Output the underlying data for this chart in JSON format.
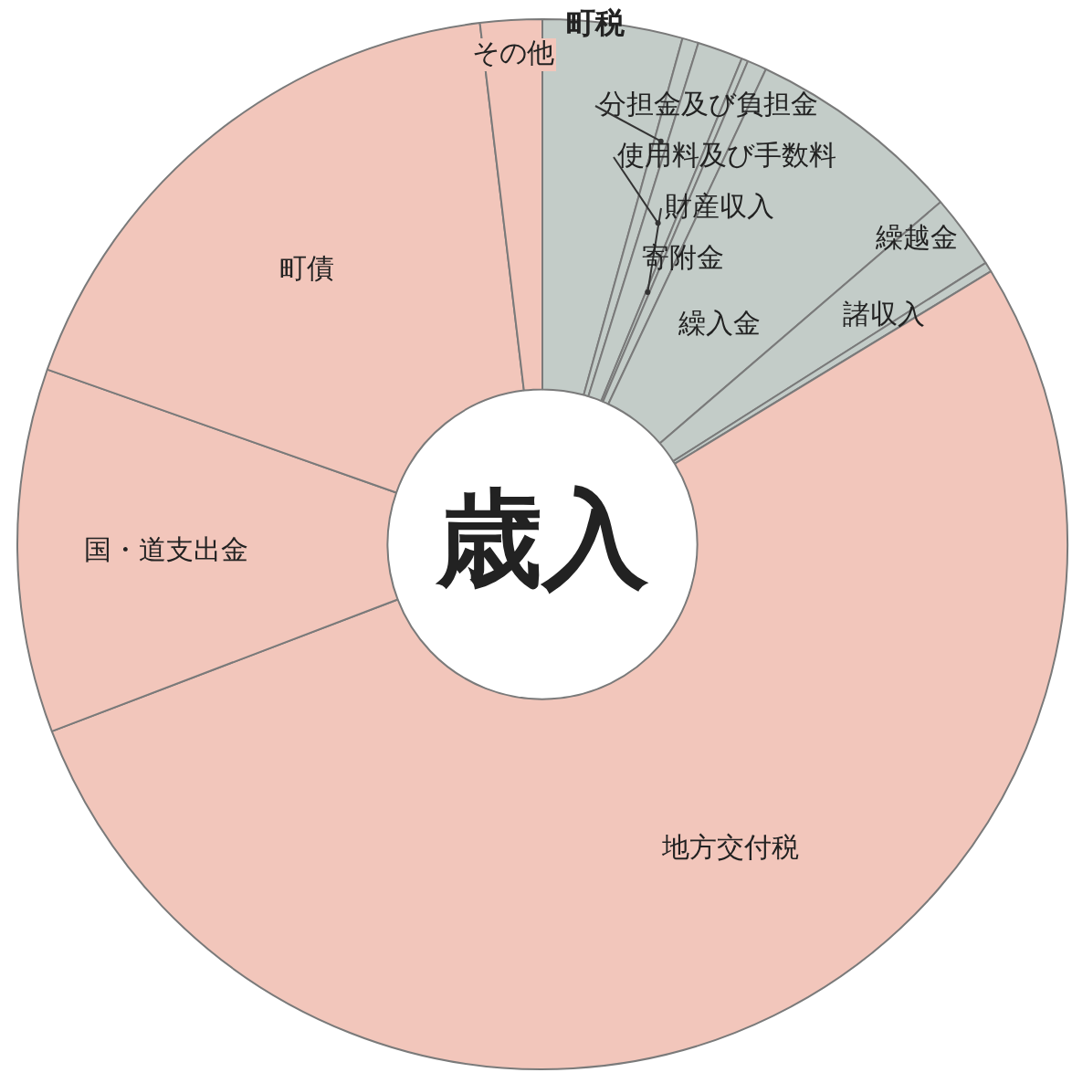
{
  "chart_data": {
    "type": "donut",
    "title": "歳入",
    "categories": [
      "町税",
      "分担金及び負担金",
      "使用料及び手数料",
      "財産収入",
      "寄附金",
      "繰入金",
      "繰越金",
      "諸収入",
      "地方交付税",
      "国・道支出金",
      "町債",
      "その他"
    ],
    "values": [
      4.3,
      0.5,
      1.4,
      0.2,
      0.6,
      6.7,
      2.3,
      0.3,
      52.9,
      11.2,
      17.7,
      1.9
    ],
    "colors": [
      "#c3ccc8",
      "#c3ccc8",
      "#c3ccc8",
      "#c3ccc8",
      "#c3ccc8",
      "#c3ccc8",
      "#c3ccc8",
      "#c3ccc8",
      "#f2c6bb",
      "#f2c6bb",
      "#f2c6bb",
      "#f2c6bb"
    ],
    "legend": false
  }
}
